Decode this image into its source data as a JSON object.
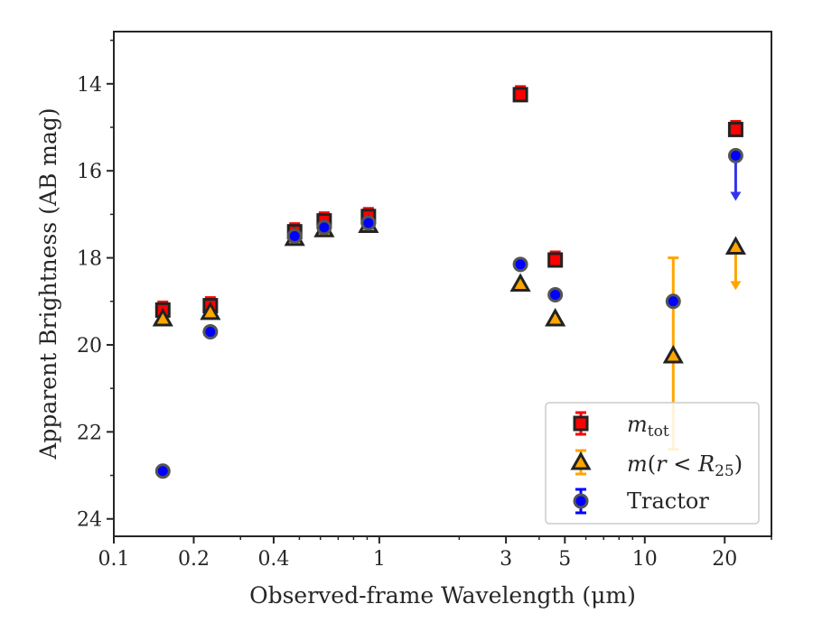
{
  "chart_data": {
    "type": "scatter",
    "title": "",
    "xlabel": "Observed-frame Wavelength (μm)",
    "ylabel": "Apparent Brightness (AB mag)",
    "xscale": "log",
    "xlim": [
      0.1,
      30
    ],
    "ylim": [
      24.4,
      12.8
    ],
    "y_inverted": true,
    "x_ticks": [
      0.1,
      0.2,
      0.4,
      1,
      3,
      5,
      10,
      20
    ],
    "x_tick_labels": [
      "0.1",
      "0.2",
      "0.4",
      "1",
      "3",
      "5",
      "10",
      "20"
    ],
    "y_ticks": [
      14,
      16,
      18,
      20,
      22,
      24
    ],
    "y_tick_labels": [
      "14",
      "16",
      "18",
      "20",
      "22",
      "24"
    ],
    "grid": false,
    "legend_position": "lower-right",
    "colors": {
      "m_tot": "#ff0000",
      "m_r25": "#ffa500",
      "tractor": "#0000ff",
      "edge": "#222222"
    },
    "series": [
      {
        "name": "m_tot",
        "marker": "square",
        "points": [
          {
            "x": 0.153,
            "y": 19.2
          },
          {
            "x": 0.231,
            "y": 19.1
          },
          {
            "x": 0.48,
            "y": 17.4
          },
          {
            "x": 0.62,
            "y": 17.15
          },
          {
            "x": 0.91,
            "y": 17.05
          },
          {
            "x": 3.4,
            "y": 14.25
          },
          {
            "x": 4.6,
            "y": 18.05
          },
          {
            "x": 22.0,
            "y": 15.05
          }
        ]
      },
      {
        "name": "m(r<R25)",
        "marker": "triangle",
        "points": [
          {
            "x": 0.153,
            "y": 19.4
          },
          {
            "x": 0.231,
            "y": 19.25
          },
          {
            "x": 0.48,
            "y": 17.55
          },
          {
            "x": 0.62,
            "y": 17.35
          },
          {
            "x": 0.91,
            "y": 17.25
          },
          {
            "x": 3.4,
            "y": 18.6
          },
          {
            "x": 4.6,
            "y": 19.4
          },
          {
            "x": 12.8,
            "y": 20.25,
            "err_low": 18.0,
            "err_high": 22.4
          },
          {
            "x": 22.0,
            "y": 17.75,
            "upper_limit_to": 18.7
          }
        ]
      },
      {
        "name": "Tractor",
        "marker": "circle",
        "points": [
          {
            "x": 0.153,
            "y": 22.9
          },
          {
            "x": 0.231,
            "y": 19.7
          },
          {
            "x": 0.48,
            "y": 17.5
          },
          {
            "x": 0.62,
            "y": 17.3
          },
          {
            "x": 0.91,
            "y": 17.2
          },
          {
            "x": 3.4,
            "y": 18.15
          },
          {
            "x": 4.6,
            "y": 18.85
          },
          {
            "x": 12.8,
            "y": 19.0
          },
          {
            "x": 22.0,
            "y": 15.65,
            "upper_limit_to": 16.65
          }
        ]
      }
    ]
  },
  "legend": {
    "tractor_label": "Tractor"
  }
}
